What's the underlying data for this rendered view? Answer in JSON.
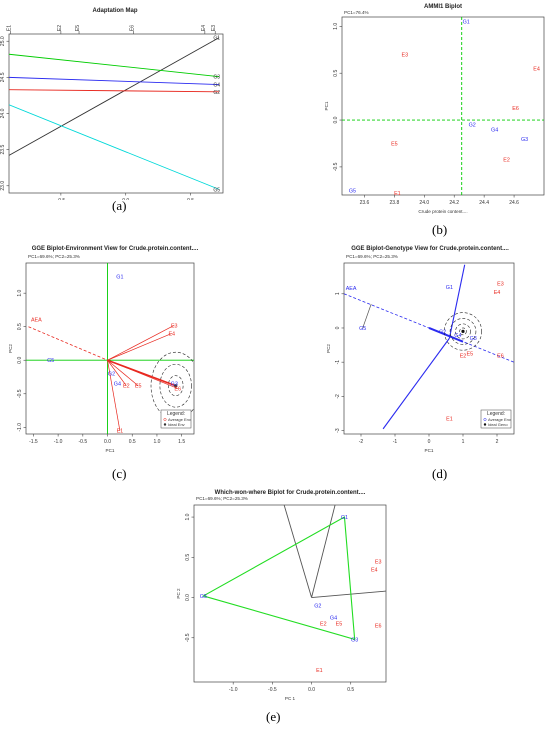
{
  "captions": [
    "(a)",
    "(b)",
    "(c)",
    "(d)",
    "(e)"
  ],
  "colors": {
    "red": "#e8281f",
    "blue": "#2b2bf0",
    "green": "#00cc00",
    "cyan": "#00d8d8",
    "black": "#333333",
    "lime": "#22dd22",
    "gray": "#555555"
  },
  "chart_data": [
    {
      "type": "line",
      "title": "Adaptation Map",
      "xlabel": "Environment IPCA1 (PC1=76.4%)",
      "ylabel": "Predicted Crude protein content....",
      "xlim": [
        -0.9,
        0.75
      ],
      "ylim": [
        22.9,
        25.1
      ],
      "xticks": [
        -0.5,
        0.0,
        0.5
      ],
      "yticks": [
        23.0,
        23.5,
        24.0,
        24.5,
        25.0
      ],
      "env_markers": [
        {
          "label": "E1",
          "x": -0.89
        },
        {
          "label": "E2",
          "x": -0.5
        },
        {
          "label": "E5",
          "x": -0.36
        },
        {
          "label": "E6",
          "x": 0.06
        },
        {
          "label": "E4",
          "x": 0.61
        },
        {
          "label": "E3",
          "x": 0.69
        }
      ],
      "series": [
        {
          "name": "G1",
          "x": [
            -0.9,
            0.72
          ],
          "y": [
            23.42,
            25.05
          ],
          "color_key": "black"
        },
        {
          "name": "G3",
          "x": [
            -0.9,
            0.72
          ],
          "y": [
            24.82,
            24.51
          ],
          "color_key": "green"
        },
        {
          "name": "G4",
          "x": [
            -0.9,
            0.72
          ],
          "y": [
            24.5,
            24.4
          ],
          "color_key": "blue"
        },
        {
          "name": "G2",
          "x": [
            -0.9,
            0.72
          ],
          "y": [
            24.33,
            24.3
          ],
          "color_key": "red"
        },
        {
          "name": "G5",
          "x": [
            -0.9,
            0.72
          ],
          "y": [
            24.12,
            22.95
          ],
          "color_key": "cyan"
        }
      ]
    },
    {
      "type": "scatter",
      "title": "AMMI1 Biplot",
      "subtitle": "PC1=76.4%",
      "xlabel": "Crude protein content....",
      "ylabel": "PC1",
      "xlim": [
        23.45,
        24.8
      ],
      "ylim": [
        -0.8,
        1.1
      ],
      "xticks": [
        23.6,
        23.8,
        24.0,
        24.2,
        24.4,
        24.6
      ],
      "yticks": [
        -0.5,
        0.0,
        0.5,
        1.0
      ],
      "reference_lines": {
        "x": 24.25,
        "y": 0.0
      },
      "genotypes": [
        {
          "label": "G1",
          "x": 24.28,
          "y": 1.05
        },
        {
          "label": "G2",
          "x": 24.32,
          "y": -0.05
        },
        {
          "label": "G3",
          "x": 24.67,
          "y": -0.2
        },
        {
          "label": "G4",
          "x": 24.47,
          "y": -0.1
        },
        {
          "label": "G5",
          "x": 23.52,
          "y": -0.75
        }
      ],
      "environments": [
        {
          "label": "E1",
          "x": 23.82,
          "y": -0.78
        },
        {
          "label": "E2",
          "x": 24.55,
          "y": -0.42
        },
        {
          "label": "E3",
          "x": 23.87,
          "y": 0.7
        },
        {
          "label": "E4",
          "x": 24.75,
          "y": 0.55
        },
        {
          "label": "E5",
          "x": 23.8,
          "y": -0.25
        },
        {
          "label": "E6",
          "x": 24.61,
          "y": 0.13
        }
      ]
    },
    {
      "type": "scatter",
      "title": "GGE Biplot-Environment View for Crude.protein.content....",
      "subtitle": "PC1=69.6%; PC2=25.3%",
      "xlabel": "PC1",
      "ylabel": "PC2",
      "xlim": [
        -1.65,
        1.75
      ],
      "ylim": [
        -1.1,
        1.45
      ],
      "xticks": [
        -1.5,
        -1.0,
        -0.5,
        0.0,
        0.5,
        1.0,
        1.5
      ],
      "yticks": [
        -1.0,
        -0.5,
        0.0,
        0.5,
        1.0
      ],
      "aea_label": "AEA",
      "genotypes": [
        {
          "label": "G1",
          "x": 0.25,
          "y": 1.25
        },
        {
          "label": "G2",
          "x": 0.08,
          "y": -0.2
        },
        {
          "label": "G3",
          "x": 1.35,
          "y": -0.35
        },
        {
          "label": "G4",
          "x": 0.2,
          "y": -0.35
        },
        {
          "label": "G5",
          "x": -1.15,
          "y": 0.0
        }
      ],
      "environments": [
        {
          "label": "E1",
          "x": 0.25,
          "y": -1.05
        },
        {
          "label": "E2",
          "x": 0.38,
          "y": -0.38
        },
        {
          "label": "E3",
          "x": 1.35,
          "y": 0.52
        },
        {
          "label": "E4",
          "x": 1.3,
          "y": 0.4
        },
        {
          "label": "E5",
          "x": 0.62,
          "y": -0.38
        },
        {
          "label": "E6",
          "x": 1.42,
          "y": -0.42
        }
      ],
      "ideal": {
        "x": 1.38,
        "y": -0.38
      },
      "legend": {
        "title": "Legend:",
        "items": [
          "Average Env",
          "Ideal Env"
        ],
        "placement": "bottom-right"
      }
    },
    {
      "type": "scatter",
      "title": "GGE Biplot-Genotype View for Crude.protein.content....",
      "subtitle": "PC1=69.6%; PC2=25.3%",
      "xlabel": "PC1",
      "ylabel": "PC2",
      "xlim": [
        -2.5,
        2.5
      ],
      "ylim": [
        -3.1,
        1.9
      ],
      "xticks": [
        -2,
        -1,
        0,
        1,
        2
      ],
      "yticks": [
        -3,
        -2,
        -1,
        0,
        1
      ],
      "aea_label": "AEA",
      "genotypes": [
        {
          "label": "G1",
          "x": 0.6,
          "y": 1.2
        },
        {
          "label": "G2",
          "x": 0.4,
          "y": -0.1
        },
        {
          "label": "G3",
          "x": 1.3,
          "y": -0.3
        },
        {
          "label": "G4",
          "x": 0.85,
          "y": -0.2
        },
        {
          "label": "G5",
          "x": -1.95,
          "y": 0.0
        }
      ],
      "environments": [
        {
          "label": "E1",
          "x": 0.6,
          "y": -2.65
        },
        {
          "label": "E2",
          "x": 1.0,
          "y": -0.8
        },
        {
          "label": "E3",
          "x": 2.1,
          "y": 1.3
        },
        {
          "label": "E4",
          "x": 2.0,
          "y": 1.05
        },
        {
          "label": "E5",
          "x": 1.2,
          "y": -0.75
        },
        {
          "label": "E6",
          "x": 2.1,
          "y": -0.8
        }
      ],
      "ideal": {
        "x": 1.0,
        "y": -0.1
      },
      "legend": {
        "title": "Legend:",
        "items": [
          "Average Env",
          "Ideal Geno"
        ],
        "placement": "bottom-right"
      }
    },
    {
      "type": "scatter",
      "title": "Which-won-where Biplot for Crude.protein.content....",
      "subtitle": "PC1=69.6%; PC2=25.3%",
      "xlabel": "PC 1",
      "ylabel": "PC 2",
      "xlim": [
        -1.5,
        0.95
      ],
      "ylim": [
        -1.05,
        1.15
      ],
      "xticks": [
        -1.0,
        -0.5,
        0.0,
        0.5
      ],
      "yticks": [
        -0.5,
        0.0,
        0.5,
        1.0
      ],
      "genotypes": [
        {
          "label": "G1",
          "x": 0.42,
          "y": 1.0
        },
        {
          "label": "G2",
          "x": 0.08,
          "y": -0.1
        },
        {
          "label": "G3",
          "x": 0.55,
          "y": -0.52
        },
        {
          "label": "G4",
          "x": 0.28,
          "y": -0.25
        },
        {
          "label": "G5",
          "x": -1.38,
          "y": 0.02
        }
      ],
      "environments": [
        {
          "label": "E1",
          "x": 0.1,
          "y": -0.9
        },
        {
          "label": "E2",
          "x": 0.15,
          "y": -0.32
        },
        {
          "label": "E3",
          "x": 0.85,
          "y": 0.45
        },
        {
          "label": "E4",
          "x": 0.8,
          "y": 0.35
        },
        {
          "label": "E5",
          "x": 0.35,
          "y": -0.32
        },
        {
          "label": "E6",
          "x": 0.85,
          "y": -0.35
        }
      ],
      "polygon": [
        "G1",
        "G3",
        "G5"
      ],
      "sector_rays": [
        [
          -0.35,
          1.15
        ],
        [
          0.95,
          0.08
        ],
        [
          0.3,
          1.15
        ]
      ]
    }
  ]
}
